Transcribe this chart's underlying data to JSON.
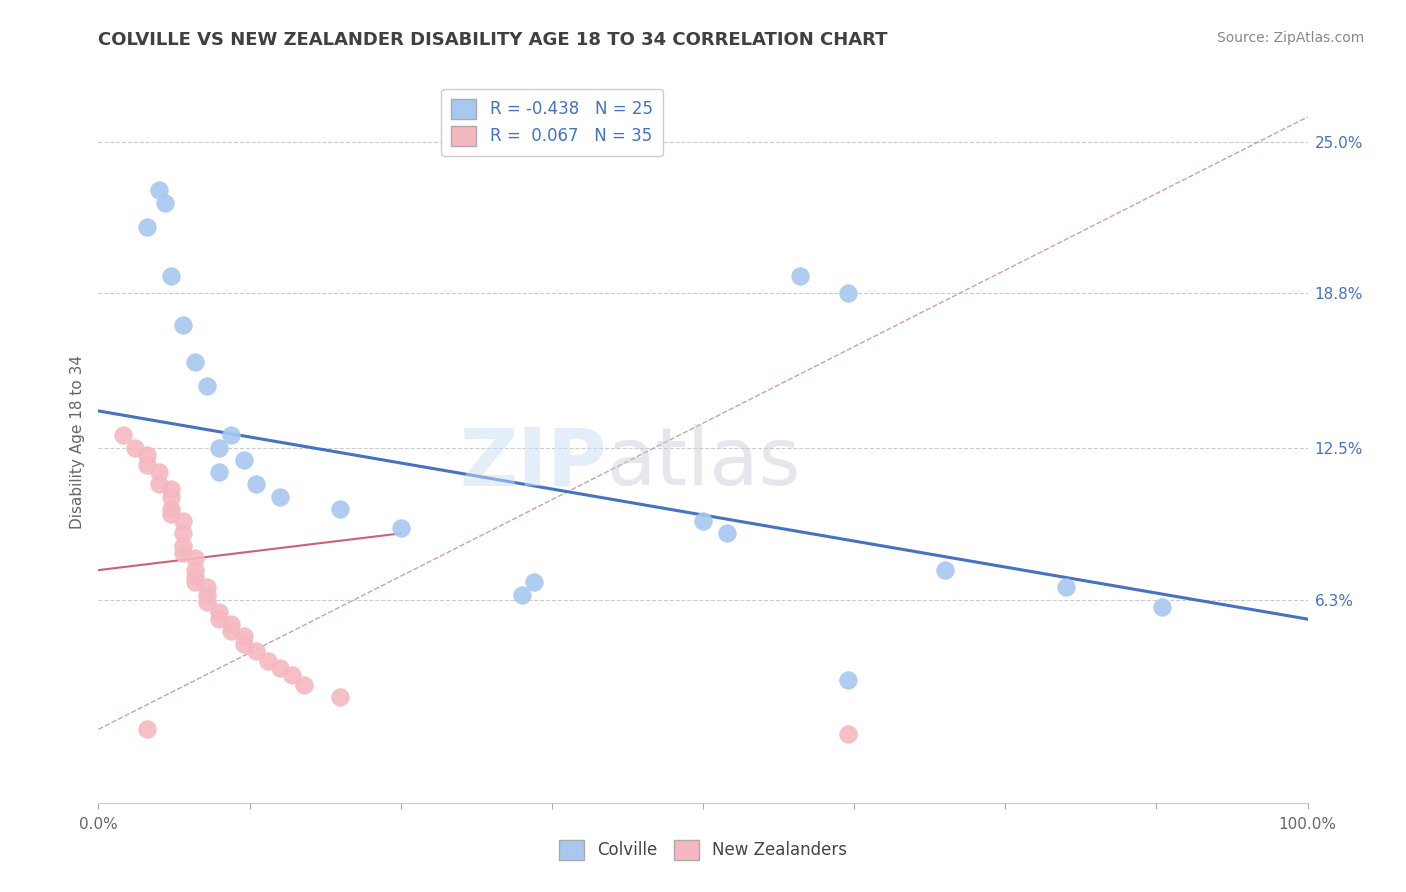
{
  "title": "COLVILLE VS NEW ZEALANDER DISABILITY AGE 18 TO 34 CORRELATION CHART",
  "source": "Source: ZipAtlas.com",
  "ylabel": "Disability Age 18 to 34",
  "watermark_zip": "ZIP",
  "watermark_atlas": "atlas",
  "xlim": [
    0.0,
    1.0
  ],
  "ylim": [
    -0.02,
    0.275
  ],
  "ytick_positions": [
    0.063,
    0.125,
    0.188,
    0.25
  ],
  "ytick_labels": [
    "6.3%",
    "12.5%",
    "18.8%",
    "25.0%"
  ],
  "legend_r_blue": "-0.438",
  "legend_n_blue": "25",
  "legend_r_pink": "0.067",
  "legend_n_pink": "35",
  "blue_color": "#a8c8f0",
  "pink_color": "#f5b8c0",
  "blue_line_color": "#4472c4",
  "pink_line_color": "#d06070",
  "dashed_line_color": "#d0a0a0",
  "background_color": "#ffffff",
  "grid_color": "#cccccc",
  "title_color": "#404040",
  "blue_scatter": [
    [
      0.04,
      0.215
    ],
    [
      0.05,
      0.23
    ],
    [
      0.055,
      0.225
    ],
    [
      0.06,
      0.195
    ],
    [
      0.07,
      0.175
    ],
    [
      0.08,
      0.16
    ],
    [
      0.09,
      0.15
    ],
    [
      0.1,
      0.125
    ],
    [
      0.1,
      0.115
    ],
    [
      0.11,
      0.13
    ],
    [
      0.12,
      0.12
    ],
    [
      0.13,
      0.11
    ],
    [
      0.15,
      0.105
    ],
    [
      0.2,
      0.1
    ],
    [
      0.25,
      0.092
    ],
    [
      0.5,
      0.095
    ],
    [
      0.52,
      0.09
    ],
    [
      0.58,
      0.195
    ],
    [
      0.62,
      0.188
    ],
    [
      0.7,
      0.075
    ],
    [
      0.8,
      0.068
    ],
    [
      0.88,
      0.06
    ],
    [
      0.62,
      0.03
    ],
    [
      0.35,
      0.065
    ],
    [
      0.36,
      0.07
    ]
  ],
  "pink_scatter": [
    [
      0.02,
      0.13
    ],
    [
      0.03,
      0.125
    ],
    [
      0.04,
      0.122
    ],
    [
      0.04,
      0.118
    ],
    [
      0.05,
      0.115
    ],
    [
      0.05,
      0.11
    ],
    [
      0.06,
      0.108
    ],
    [
      0.06,
      0.105
    ],
    [
      0.06,
      0.1
    ],
    [
      0.06,
      0.098
    ],
    [
      0.07,
      0.095
    ],
    [
      0.07,
      0.09
    ],
    [
      0.07,
      0.085
    ],
    [
      0.07,
      0.082
    ],
    [
      0.08,
      0.08
    ],
    [
      0.08,
      0.075
    ],
    [
      0.08,
      0.072
    ],
    [
      0.08,
      0.07
    ],
    [
      0.09,
      0.068
    ],
    [
      0.09,
      0.065
    ],
    [
      0.09,
      0.062
    ],
    [
      0.1,
      0.058
    ],
    [
      0.1,
      0.055
    ],
    [
      0.11,
      0.053
    ],
    [
      0.11,
      0.05
    ],
    [
      0.12,
      0.048
    ],
    [
      0.12,
      0.045
    ],
    [
      0.13,
      0.042
    ],
    [
      0.14,
      0.038
    ],
    [
      0.15,
      0.035
    ],
    [
      0.16,
      0.032
    ],
    [
      0.17,
      0.028
    ],
    [
      0.2,
      0.023
    ],
    [
      0.04,
      0.01
    ],
    [
      0.62,
      0.008
    ]
  ],
  "blue_trend_x": [
    0.0,
    1.0
  ],
  "blue_trend_y": [
    0.14,
    0.055
  ],
  "pink_trend_x": [
    0.0,
    0.25
  ],
  "pink_trend_y": [
    0.075,
    0.09
  ],
  "dashed_trend_x": [
    0.0,
    1.0
  ],
  "dashed_trend_y": [
    0.01,
    0.26
  ]
}
